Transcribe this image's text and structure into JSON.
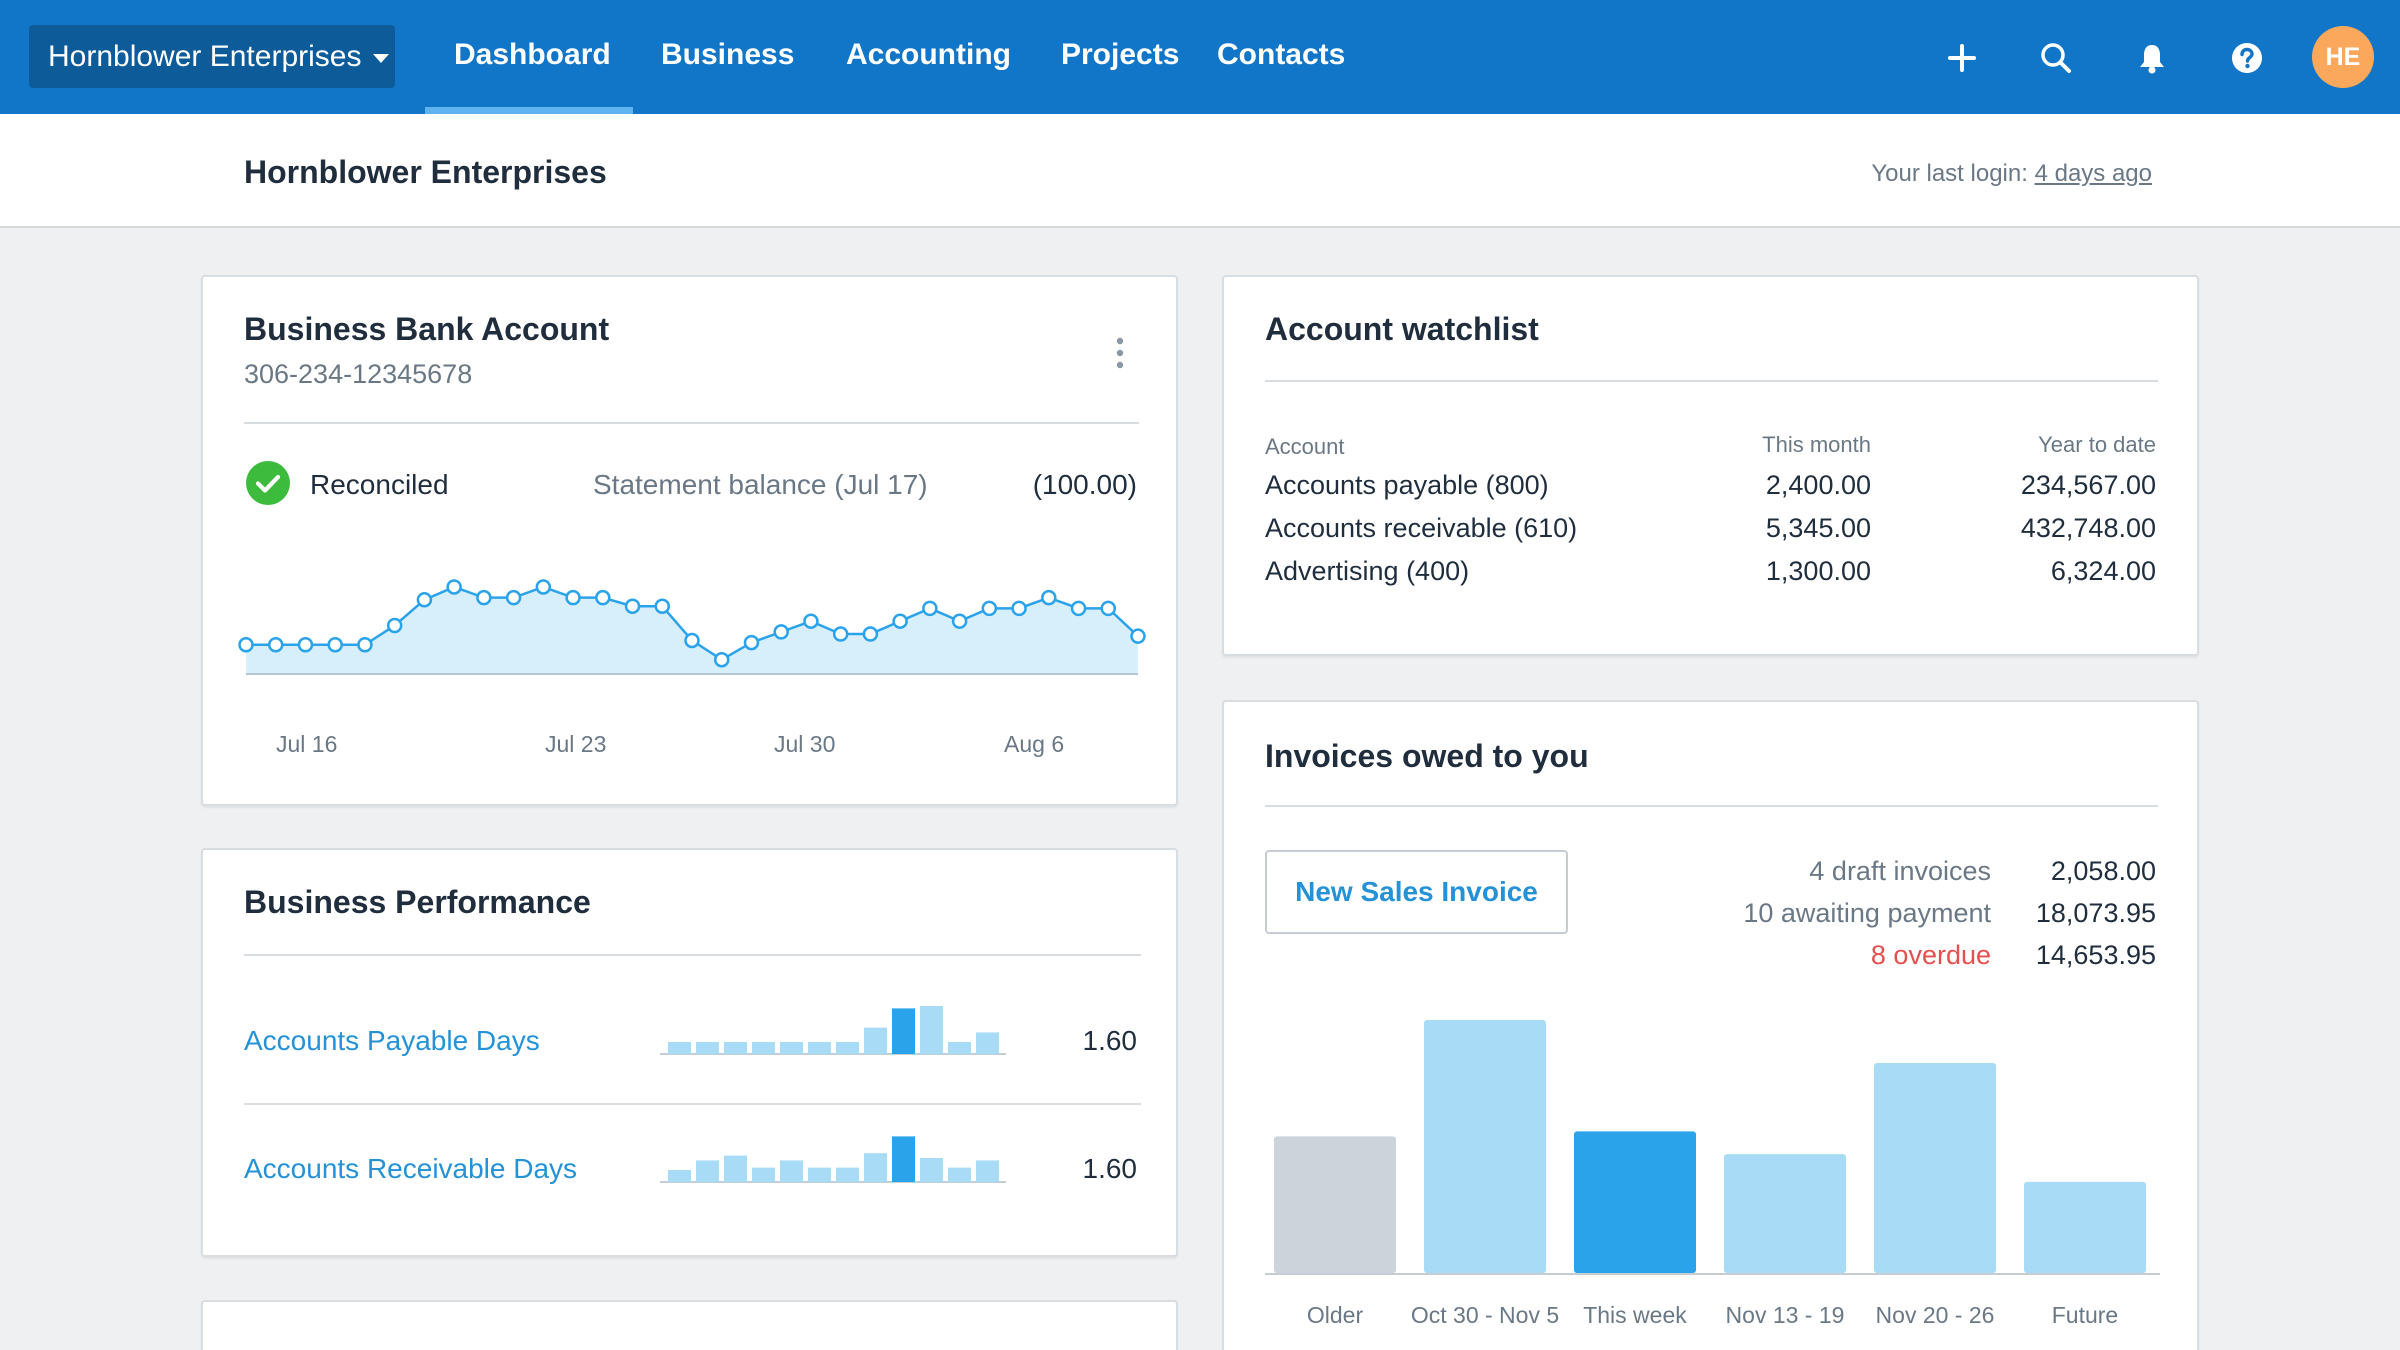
{
  "nav": {
    "org_name": "Hornblower Enterprises",
    "items": [
      "Dashboard",
      "Business",
      "Accounting",
      "Projects",
      "Contacts"
    ],
    "active": "Dashboard",
    "icons": [
      "plus-icon",
      "search-icon",
      "bell-icon",
      "help-icon"
    ],
    "avatar_initials": "HE"
  },
  "header": {
    "title": "Hornblower Enterprises",
    "last_login_label": "Your last login:",
    "last_login_value": "4 days ago"
  },
  "bank": {
    "title": "Business Bank Account",
    "account_number": "306-234-12345678",
    "status": "Reconciled",
    "statement_label": "Statement balance (Jul 17)",
    "statement_value": "(100.00)",
    "x_labels": [
      "Jul 16",
      "Jul 23",
      "Jul 30",
      "Aug 6"
    ],
    "series": [
      0.18,
      0.18,
      0.18,
      0.18,
      0.18,
      0.36,
      0.6,
      0.72,
      0.62,
      0.62,
      0.72,
      0.62,
      0.62,
      0.54,
      0.54,
      0.22,
      0.04,
      0.2,
      0.3,
      0.4,
      0.28,
      0.28,
      0.4,
      0.52,
      0.4,
      0.52,
      0.52,
      0.62,
      0.52,
      0.52,
      0.26
    ]
  },
  "performance": {
    "title": "Business Performance",
    "rows": [
      {
        "label": "Accounts Payable Days",
        "value": "1.60",
        "bars": [
          0.25,
          0.25,
          0.25,
          0.25,
          0.25,
          0.25,
          0.25,
          0.55,
          0.95,
          1.0,
          0.25,
          0.45
        ],
        "highlight": 8
      },
      {
        "label": "Accounts Receivable Days",
        "value": "1.60",
        "bars": [
          0.25,
          0.45,
          0.55,
          0.3,
          0.45,
          0.3,
          0.3,
          0.6,
          0.95,
          0.5,
          0.3,
          0.45
        ],
        "highlight": 8
      }
    ]
  },
  "watchlist": {
    "title": "Account watchlist",
    "headers": [
      "Account",
      "This month",
      "Year to date"
    ],
    "rows": [
      {
        "account": "Accounts payable (800)",
        "month": "2,400.00",
        "ytd": "234,567.00"
      },
      {
        "account": "Accounts receivable (610)",
        "month": "5,345.00",
        "ytd": "432,748.00"
      },
      {
        "account": "Advertising (400)",
        "month": "1,300.00",
        "ytd": "6,324.00"
      }
    ]
  },
  "invoices": {
    "title": "Invoices owed to you",
    "button": "New Sales Invoice",
    "summary": [
      {
        "label": "4 draft invoices",
        "value": "2,058.00",
        "status": "normal"
      },
      {
        "label": "10 awaiting payment",
        "value": "18,073.95",
        "status": "normal"
      },
      {
        "label": "8 overdue",
        "value": "14,653.95",
        "status": "overdue"
      }
    ],
    "colors": {
      "older": "#ccd3da",
      "normal": "#a8dcf6",
      "current": "#2ba3ea",
      "overdue": "#e54f4f"
    }
  },
  "chart_data": {
    "type": "bar",
    "categories": [
      "Older",
      "Oct 30 - Nov 5",
      "This week",
      "Nov 13 - 19",
      "Nov 20 - 26",
      "Future"
    ],
    "values": [
      0.54,
      1.0,
      0.56,
      0.47,
      0.83,
      0.36
    ],
    "title": "",
    "xlabel": "",
    "ylabel": "",
    "ylim": [
      0,
      1
    ]
  }
}
